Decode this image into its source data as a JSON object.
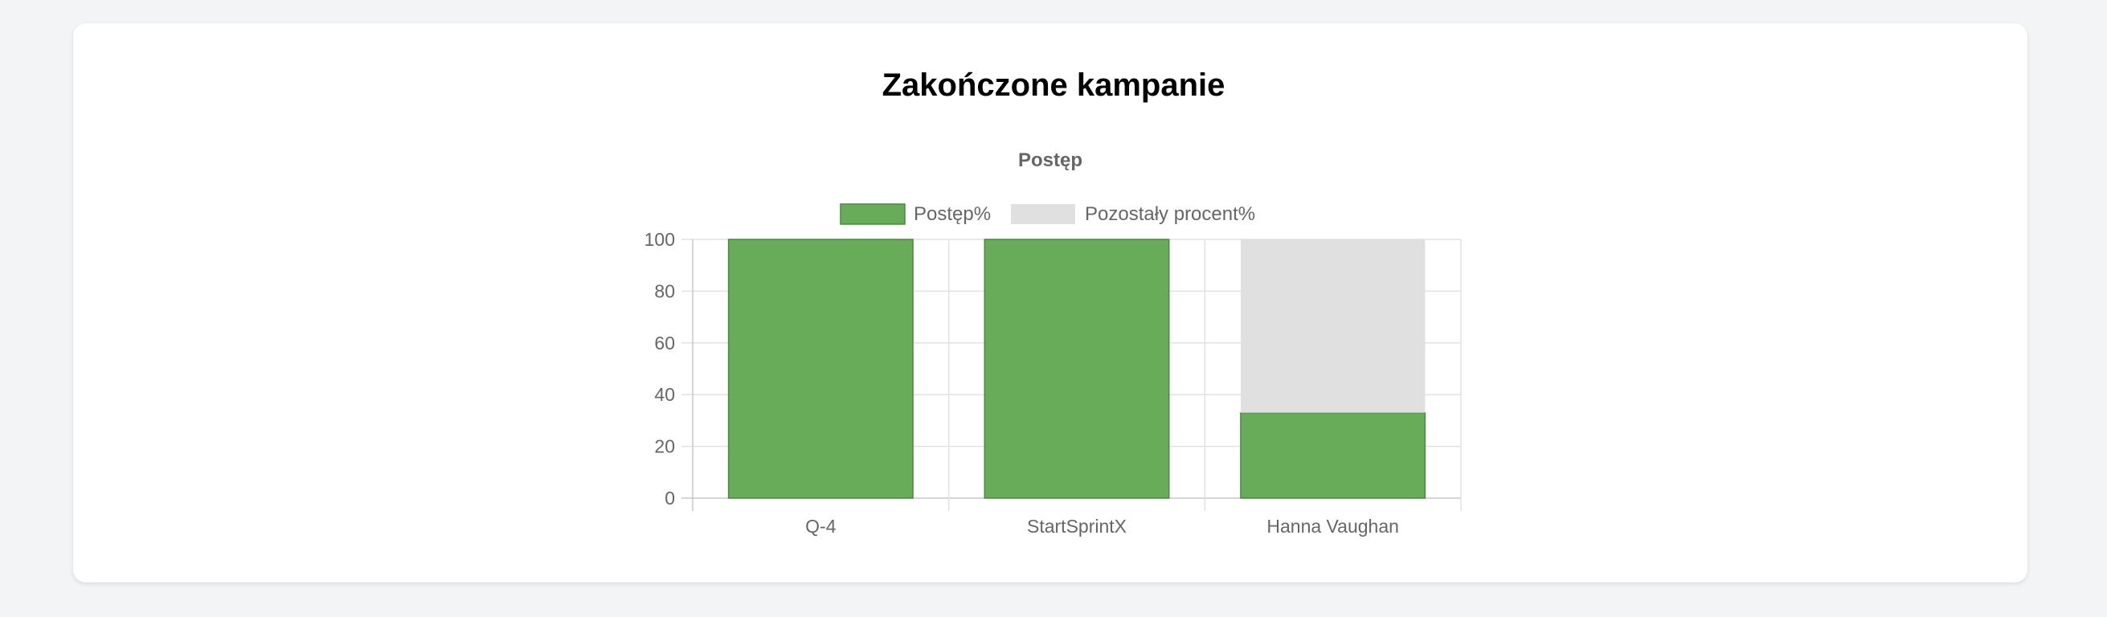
{
  "page": {
    "title": "Zakończone kampanie"
  },
  "colors": {
    "progress": "#68ac5a",
    "progress_border": "#4a8a3e",
    "remaining": "#e0e0e0",
    "grid": "#e2e2e2",
    "axis_text": "#666666"
  },
  "chart_data": {
    "type": "bar",
    "stacked": true,
    "title": "Postęp",
    "categories": [
      "Q-4",
      "StartSprintX",
      "Hanna Vaughan"
    ],
    "series": [
      {
        "name": "Postęp%",
        "values": [
          100,
          100,
          33
        ]
      },
      {
        "name": "Pozostały procent%",
        "values": [
          0,
          0,
          67
        ]
      }
    ],
    "ylim": [
      0,
      100
    ],
    "yticks": [
      0,
      20,
      40,
      60,
      80,
      100
    ],
    "grid": true,
    "legend": "top-center"
  }
}
